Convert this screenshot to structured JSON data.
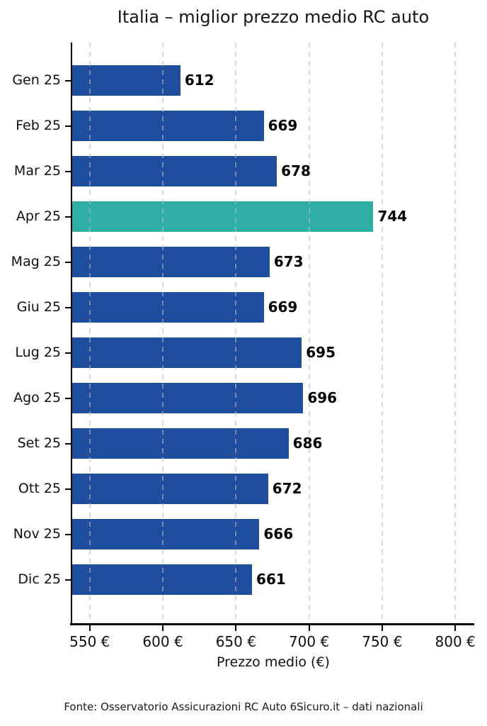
{
  "footer": {
    "text": "Fonte: Osservatorio Assicurazioni RC Auto 6Sicuro.it – dati nazionali"
  },
  "chart_data": {
    "type": "bar",
    "orientation": "horizontal",
    "title": "Italia – miglior prezzo medio RC auto",
    "categories": [
      "Gen 25",
      "Feb 25",
      "Mar 25",
      "Apr 25",
      "Mag 25",
      "Giu 25",
      "Lug 25",
      "Ago 25",
      "Set 25",
      "Ott 25",
      "Nov 25",
      "Dic 25"
    ],
    "values": [
      612,
      669,
      678,
      744,
      673,
      669,
      695,
      696,
      686,
      672,
      666,
      661
    ],
    "highlight_index": 3,
    "value_labels_shown": true,
    "xlabel": "Prezzo medio (€)",
    "ylabel": "",
    "xlim": [
      538,
      813
    ],
    "xticks": [
      550,
      600,
      650,
      700,
      750,
      800
    ],
    "xtick_labels": [
      "550 €",
      "600 €",
      "650 €",
      "700 €",
      "750 €",
      "800 €"
    ],
    "grid": "vertical dashed, drawn over bars",
    "legend": "none",
    "bar_color": "#1F4E9E",
    "highlight_color": "#2FAEA6",
    "grid_color": "#BDBDBD",
    "axis_color": "#000000",
    "text_color": "#111111"
  }
}
